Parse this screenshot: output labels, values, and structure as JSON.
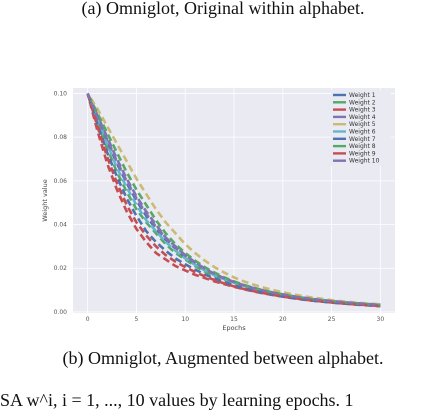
{
  "captions": {
    "top": "(a) Omniglot, Original within alphabet.",
    "bottom": "(b) Omniglot, Augmented between alphabet.",
    "partial_line": "SA w^i, i = 1, ..., 10 values by learning epochs. 1"
  },
  "chart_data": {
    "type": "line",
    "title": "",
    "xlabel": "Epochs",
    "ylabel": "Weight value",
    "xlim": [
      -1.5,
      31.5
    ],
    "ylim": [
      -0.0005,
      0.1025
    ],
    "xticks": [
      0,
      5,
      10,
      15,
      20,
      25,
      30
    ],
    "yticks": [
      0.0,
      0.02,
      0.04,
      0.06,
      0.08,
      0.1
    ],
    "ytick_labels": [
      "0.00",
      "0.02",
      "0.04",
      "0.06",
      "0.08",
      "0.10"
    ],
    "grid": true,
    "legend_position": "top-right",
    "line_style": "dashed",
    "x": [
      0,
      1,
      2,
      3,
      4,
      5,
      6,
      7,
      8,
      9,
      10,
      11,
      12,
      13,
      14,
      15,
      16,
      17,
      18,
      19,
      20,
      21,
      22,
      23,
      24,
      25,
      26,
      27,
      28,
      29,
      30
    ],
    "series": [
      {
        "name": "Weight 1",
        "color": "#4c72b0",
        "values": [
          0.1,
          0.089,
          0.078,
          0.068,
          0.059,
          0.051,
          0.044,
          0.038,
          0.033,
          0.029,
          0.025,
          0.022,
          0.019,
          0.017,
          0.0152,
          0.0135,
          0.012,
          0.0108,
          0.0097,
          0.0087,
          0.0079,
          0.0071,
          0.0065,
          0.0059,
          0.0054,
          0.0049,
          0.0045,
          0.0041,
          0.0038,
          0.0035,
          0.0032
        ]
      },
      {
        "name": "Weight 2",
        "color": "#55a868",
        "values": [
          0.1,
          0.087,
          0.075,
          0.064,
          0.055,
          0.047,
          0.041,
          0.036,
          0.031,
          0.027,
          0.024,
          0.021,
          0.0185,
          0.0165,
          0.0147,
          0.0132,
          0.0118,
          0.0106,
          0.0095,
          0.0086,
          0.0078,
          0.007,
          0.0064,
          0.0058,
          0.0053,
          0.0048,
          0.0044,
          0.004,
          0.0037,
          0.0034,
          0.0031
        ]
      },
      {
        "name": "Weight 3",
        "color": "#c44e52",
        "values": [
          0.1,
          0.083,
          0.068,
          0.056,
          0.046,
          0.038,
          0.032,
          0.027,
          0.024,
          0.021,
          0.019,
          0.017,
          0.0155,
          0.014,
          0.0127,
          0.0115,
          0.0104,
          0.0094,
          0.0085,
          0.0077,
          0.007,
          0.0063,
          0.0057,
          0.0052,
          0.0047,
          0.0043,
          0.0039,
          0.0035,
          0.0032,
          0.0029,
          0.0026
        ]
      },
      {
        "name": "Weight 4",
        "color": "#8172b2",
        "values": [
          0.1,
          0.09,
          0.08,
          0.07,
          0.061,
          0.053,
          0.046,
          0.04,
          0.034,
          0.03,
          0.026,
          0.0228,
          0.0198,
          0.0174,
          0.0154,
          0.0137,
          0.0122,
          0.0109,
          0.0098,
          0.0088,
          0.008,
          0.0072,
          0.0065,
          0.0059,
          0.0054,
          0.0049,
          0.0045,
          0.0041,
          0.0038,
          0.0035,
          0.0033
        ]
      },
      {
        "name": "Weight 5",
        "color": "#ccb974",
        "values": [
          0.1,
          0.093,
          0.085,
          0.077,
          0.069,
          0.061,
          0.054,
          0.047,
          0.041,
          0.036,
          0.031,
          0.027,
          0.0235,
          0.0205,
          0.018,
          0.0158,
          0.014,
          0.0125,
          0.0112,
          0.01,
          0.009,
          0.0081,
          0.0073,
          0.0066,
          0.006,
          0.0054,
          0.0049,
          0.0045,
          0.0041,
          0.0038,
          0.0035
        ]
      },
      {
        "name": "Weight 6",
        "color": "#64b5cd",
        "values": [
          0.1,
          0.088,
          0.077,
          0.066,
          0.057,
          0.049,
          0.042,
          0.037,
          0.032,
          0.028,
          0.0245,
          0.0215,
          0.019,
          0.0168,
          0.015,
          0.0134,
          0.012,
          0.0107,
          0.0096,
          0.0087,
          0.0078,
          0.0071,
          0.0064,
          0.0058,
          0.0053,
          0.0048,
          0.0044,
          0.004,
          0.0037,
          0.0034,
          0.0031
        ]
      },
      {
        "name": "Weight 7",
        "color": "#4c72b0",
        "values": [
          0.1,
          0.086,
          0.073,
          0.062,
          0.052,
          0.044,
          0.037,
          0.032,
          0.028,
          0.0245,
          0.0218,
          0.0194,
          0.0172,
          0.0153,
          0.0136,
          0.0121,
          0.0108,
          0.0097,
          0.0087,
          0.0078,
          0.007,
          0.0063,
          0.0057,
          0.0052,
          0.0047,
          0.0043,
          0.0039,
          0.0036,
          0.0033,
          0.003,
          0.0028
        ]
      },
      {
        "name": "Weight 8",
        "color": "#55a868",
        "values": [
          0.1,
          0.091,
          0.082,
          0.073,
          0.064,
          0.056,
          0.049,
          0.042,
          0.036,
          0.031,
          0.027,
          0.0235,
          0.0205,
          0.018,
          0.0158,
          0.014,
          0.0124,
          0.0111,
          0.0099,
          0.0089,
          0.008,
          0.0072,
          0.0065,
          0.0059,
          0.0053,
          0.0048,
          0.0044,
          0.004,
          0.0037,
          0.0034,
          0.0031
        ]
      },
      {
        "name": "Weight 9",
        "color": "#c44e52",
        "values": [
          0.1,
          0.085,
          0.071,
          0.059,
          0.049,
          0.041,
          0.035,
          0.03,
          0.026,
          0.023,
          0.0205,
          0.0183,
          0.0163,
          0.0146,
          0.013,
          0.0117,
          0.0105,
          0.0095,
          0.0086,
          0.0078,
          0.007,
          0.0064,
          0.0058,
          0.0052,
          0.0048,
          0.0043,
          0.0039,
          0.0036,
          0.0033,
          0.003,
          0.0027
        ]
      },
      {
        "name": "Weight 10",
        "color": "#8172b2",
        "values": [
          0.1,
          0.089,
          0.079,
          0.069,
          0.06,
          0.052,
          0.045,
          0.039,
          0.034,
          0.0295,
          0.0258,
          0.0226,
          0.0198,
          0.0174,
          0.0154,
          0.0137,
          0.0122,
          0.0109,
          0.0098,
          0.0088,
          0.008,
          0.0072,
          0.0065,
          0.0059,
          0.0054,
          0.0049,
          0.0045,
          0.0041,
          0.0038,
          0.0035,
          0.0032
        ]
      }
    ]
  }
}
